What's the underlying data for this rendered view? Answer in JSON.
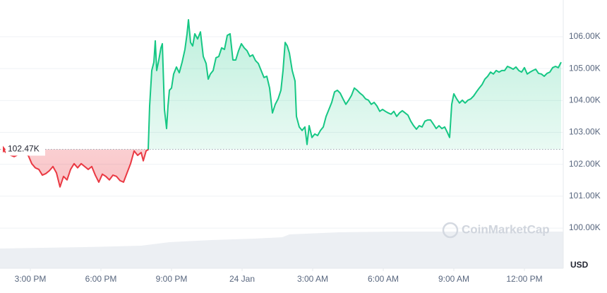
{
  "chart_data": {
    "type": "line",
    "currency": "USD",
    "watermark": "CoinMarketCap",
    "baseline": {
      "value": 102.47,
      "label": "102.47K"
    },
    "colors": {
      "up": "#16c784",
      "down": "#ea3943"
    },
    "xlim": [
      13.71,
      37.71
    ],
    "ylim": [
      98.74,
      107.15
    ],
    "grid": true,
    "xticks": [
      {
        "value": 15,
        "label": "3:00 PM"
      },
      {
        "value": 18,
        "label": "6:00 PM"
      },
      {
        "value": 21,
        "label": "9:00 PM"
      },
      {
        "value": 24,
        "label": "24 Jan"
      },
      {
        "value": 27,
        "label": "3:00 AM"
      },
      {
        "value": 30,
        "label": "6:00 AM"
      },
      {
        "value": 33,
        "label": "9:00 AM"
      },
      {
        "value": 36,
        "label": "12:00 PM"
      }
    ],
    "yticks": [
      {
        "value": 100,
        "label": "100.00K"
      },
      {
        "value": 101,
        "label": "101.00K"
      },
      {
        "value": 102,
        "label": "102.00K"
      },
      {
        "value": 103,
        "label": "103.00K"
      },
      {
        "value": 104,
        "label": "104.00K"
      },
      {
        "value": 105,
        "label": "105.00K"
      },
      {
        "value": 106,
        "label": "106.00K"
      }
    ],
    "x": [
      13.86,
      14.01,
      14.31,
      14.61,
      14.91,
      15.06,
      15.21,
      15.36,
      15.51,
      15.66,
      15.81,
      15.96,
      16.11,
      16.26,
      16.41,
      16.56,
      16.71,
      16.86,
      17.01,
      17.16,
      17.31,
      17.46,
      17.61,
      17.76,
      17.91,
      18.06,
      18.21,
      18.36,
      18.51,
      18.66,
      18.81,
      18.96,
      19.11,
      19.26,
      19.41,
      19.56,
      19.71,
      19.8,
      19.92,
      20.01,
      20.07,
      20.16,
      20.25,
      20.31,
      20.37,
      20.46,
      20.55,
      20.61,
      20.7,
      20.79,
      20.85,
      20.91,
      21.0,
      21.09,
      21.21,
      21.33,
      21.45,
      21.57,
      21.66,
      21.72,
      21.81,
      21.9,
      21.99,
      22.11,
      22.23,
      22.35,
      22.47,
      22.56,
      22.65,
      22.77,
      22.89,
      23.01,
      23.13,
      23.25,
      23.37,
      23.49,
      23.61,
      23.73,
      23.85,
      23.97,
      24.09,
      24.21,
      24.33,
      24.45,
      24.57,
      24.69,
      24.81,
      24.93,
      25.05,
      25.17,
      25.29,
      25.41,
      25.53,
      25.65,
      25.74,
      25.83,
      25.92,
      26.01,
      26.13,
      26.25,
      26.31,
      26.43,
      26.55,
      26.67,
      26.76,
      26.85,
      26.97,
      27.09,
      27.21,
      27.33,
      27.45,
      27.57,
      27.69,
      27.81,
      27.93,
      28.05,
      28.17,
      28.29,
      28.41,
      28.53,
      28.65,
      28.77,
      28.89,
      29.01,
      29.13,
      29.25,
      29.37,
      29.49,
      29.61,
      29.73,
      29.85,
      29.97,
      30.09,
      30.21,
      30.33,
      30.45,
      30.57,
      30.69,
      30.81,
      30.93,
      31.05,
      31.17,
      31.29,
      31.41,
      31.53,
      31.65,
      31.77,
      31.89,
      32.01,
      32.13,
      32.25,
      32.37,
      32.49,
      32.61,
      32.73,
      32.82,
      32.91,
      33.0,
      33.12,
      33.24,
      33.36,
      33.48,
      33.6,
      33.72,
      33.84,
      33.96,
      34.08,
      34.2,
      34.32,
      34.44,
      34.56,
      34.68,
      34.8,
      34.92,
      35.04,
      35.16,
      35.28,
      35.4,
      35.52,
      35.64,
      35.76,
      35.88,
      36.0,
      36.12,
      36.24,
      36.36,
      36.48,
      36.6,
      36.72,
      36.84,
      36.96,
      37.08,
      37.2,
      37.32,
      37.44,
      37.56
    ],
    "values": [
      102.44,
      102.33,
      102.24,
      102.35,
      102.28,
      102.02,
      101.89,
      101.84,
      101.66,
      101.71,
      101.8,
      101.93,
      101.73,
      101.29,
      101.62,
      101.51,
      101.84,
      102.02,
      101.89,
      102.02,
      101.93,
      101.84,
      101.93,
      101.66,
      101.44,
      101.69,
      101.62,
      101.51,
      101.66,
      101.62,
      101.49,
      101.44,
      101.73,
      102.02,
      102.42,
      102.28,
      102.37,
      102.11,
      102.42,
      102.46,
      103.83,
      104.94,
      105.2,
      105.87,
      104.94,
      105.27,
      105.65,
      105.78,
      103.72,
      103.12,
      103.83,
      104.32,
      104.39,
      104.83,
      105.05,
      104.87,
      105.2,
      105.6,
      106.09,
      106.53,
      105.82,
      105.71,
      106.09,
      105.93,
      106.15,
      105.38,
      105.16,
      104.67,
      104.83,
      104.94,
      105.34,
      105.38,
      105.65,
      105.6,
      106.04,
      106.09,
      105.27,
      105.27,
      105.56,
      105.78,
      105.65,
      105.56,
      105.38,
      105.43,
      105.25,
      105.16,
      104.94,
      104.72,
      104.76,
      104.39,
      103.61,
      103.88,
      104.05,
      104.32,
      104.94,
      105.82,
      105.71,
      105.49,
      104.94,
      104.61,
      103.5,
      103.17,
      103.06,
      103.17,
      102.62,
      103.21,
      102.84,
      102.95,
      102.9,
      103.06,
      103.17,
      103.5,
      103.72,
      103.94,
      104.27,
      104.32,
      104.23,
      104.05,
      103.88,
      104.01,
      104.16,
      104.39,
      104.32,
      104.23,
      104.16,
      104.05,
      104.01,
      103.88,
      103.94,
      103.83,
      103.66,
      103.72,
      103.66,
      103.61,
      103.57,
      103.66,
      103.5,
      103.61,
      103.68,
      103.61,
      103.54,
      103.35,
      103.21,
      103.1,
      103.21,
      103.17,
      103.35,
      103.39,
      103.39,
      103.26,
      103.12,
      103.21,
      103.12,
      103.17,
      102.99,
      102.84,
      103.88,
      104.21,
      104.05,
      103.92,
      104.01,
      103.92,
      104.01,
      104.05,
      104.14,
      104.27,
      104.39,
      104.5,
      104.67,
      104.76,
      104.89,
      104.83,
      104.94,
      104.89,
      104.94,
      104.94,
      105.07,
      105.03,
      104.98,
      105.05,
      104.94,
      104.89,
      105.03,
      104.83,
      104.89,
      104.94,
      104.98,
      104.85,
      104.83,
      104.76,
      104.85,
      104.89,
      105.03,
      105.07,
      105.03,
      105.2
    ]
  }
}
